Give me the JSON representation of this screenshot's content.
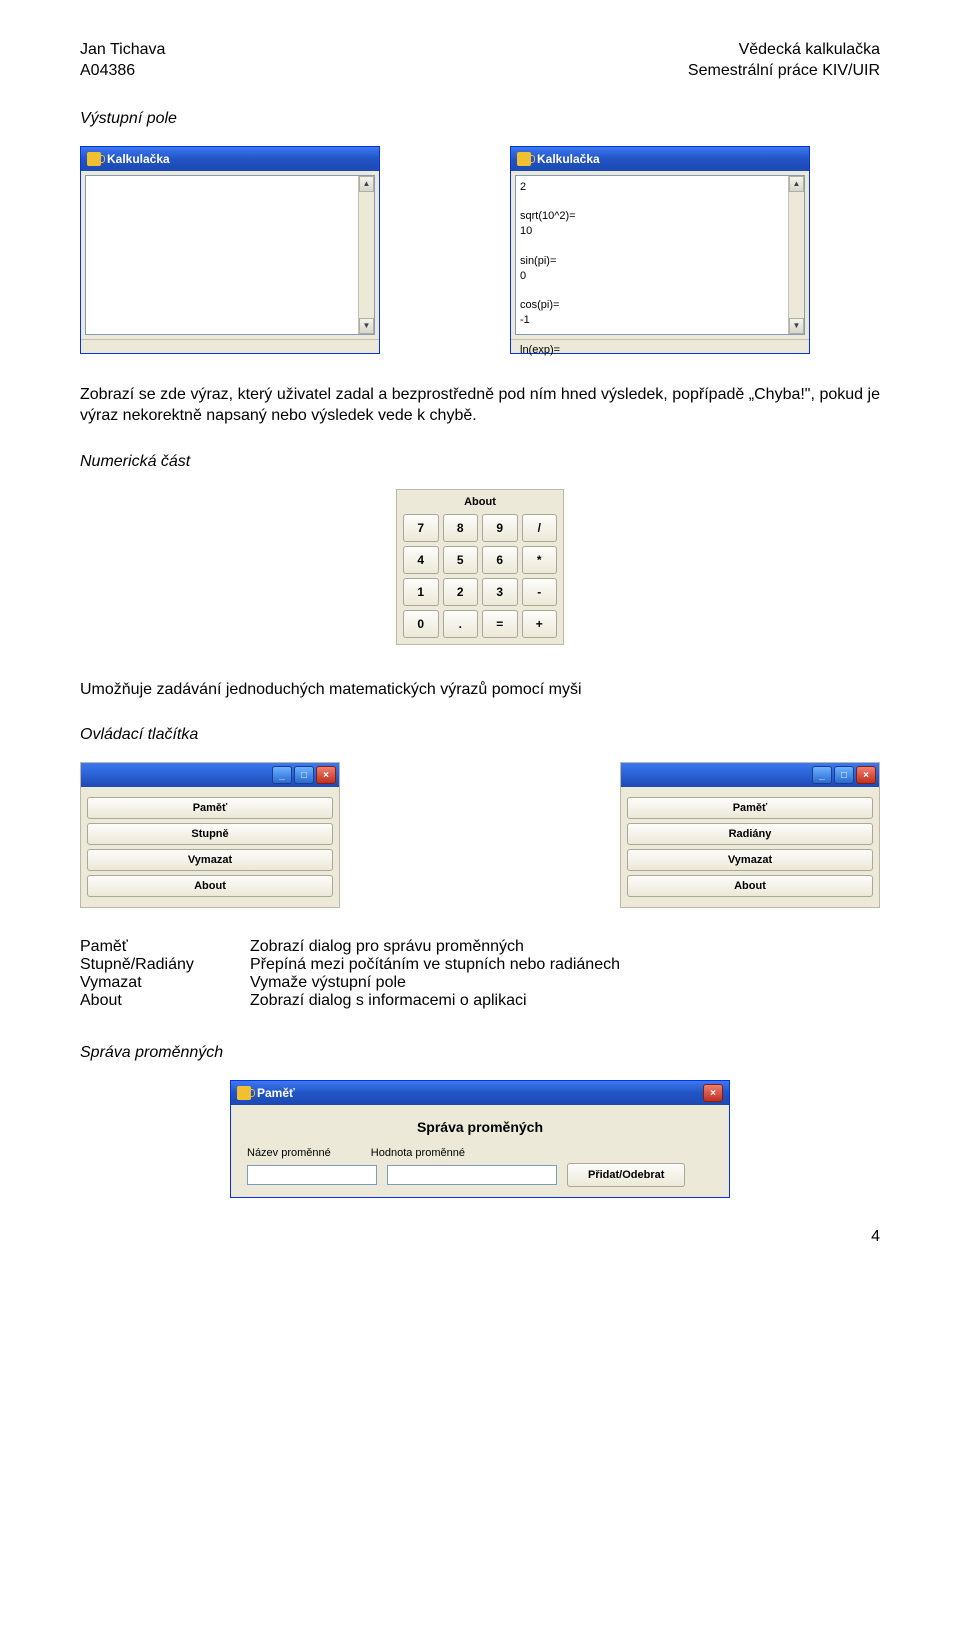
{
  "header": {
    "left_line1": "Jan Tichava",
    "left_line2": "A04386",
    "right_line1": "Vědecká kalkulačka",
    "right_line2": "Semestrální práce KIV/UIR"
  },
  "s1_title": "Výstupní pole",
  "win_title": "Kalkulačka",
  "winB_content": "2\n\nsqrt(10^2)=\n10\n\nsin(pi)=\n0\n\ncos(pi)=\n-1\n\nln(exp)=",
  "para1": "Zobrazí se zde výraz, který uživatel zadal a bezprostředně pod ním hned výsledek, popřípadě „Chyba!\", pokud je výraz nekorektně napsaný nebo výsledek vede k chybě.",
  "s2_title": "Numerická část",
  "keypad": {
    "about": "About",
    "keys": [
      "7",
      "8",
      "9",
      "/",
      "4",
      "5",
      "6",
      "*",
      "1",
      "2",
      "3",
      "-",
      "0",
      ".",
      "=",
      "+"
    ]
  },
  "para2": "Umožňuje zadávání jednoduchých matematických výrazů pomocí myši",
  "s3_title": "Ovládací tlačítka",
  "panelA": [
    "Paměť",
    "Stupně",
    "Vymazat",
    "About"
  ],
  "panelB": [
    "Paměť",
    "Radiány",
    "Vymazat",
    "About"
  ],
  "defs": [
    {
      "k": "Paměť",
      "v": "Zobrazí dialog pro správu proměnných"
    },
    {
      "k": "Stupně/Radiány",
      "v": "Přepíná mezi počítáním ve stupních nebo radiánech"
    },
    {
      "k": "Vymazat",
      "v": "Vymaže výstupní pole"
    },
    {
      "k": "About",
      "v": "Zobrazí dialog s informacemi o aplikaci"
    }
  ],
  "s4_title": "Správa proměnných",
  "mem": {
    "title": "Paměť",
    "heading": "Správa proměných",
    "lbl1": "Název proměnné",
    "lbl2": "Hodnota proměnné",
    "btn": "Přidat/Odebrat"
  },
  "page": "4",
  "colors": {
    "bg": "#ffffff",
    "winface": "#ece9d8",
    "titlegrad_top": "#3b78f2",
    "titlegrad_bot": "#1c49b4",
    "border": "#0831d9",
    "btnborder": "#aca899",
    "inputborder": "#7f9db9"
  }
}
